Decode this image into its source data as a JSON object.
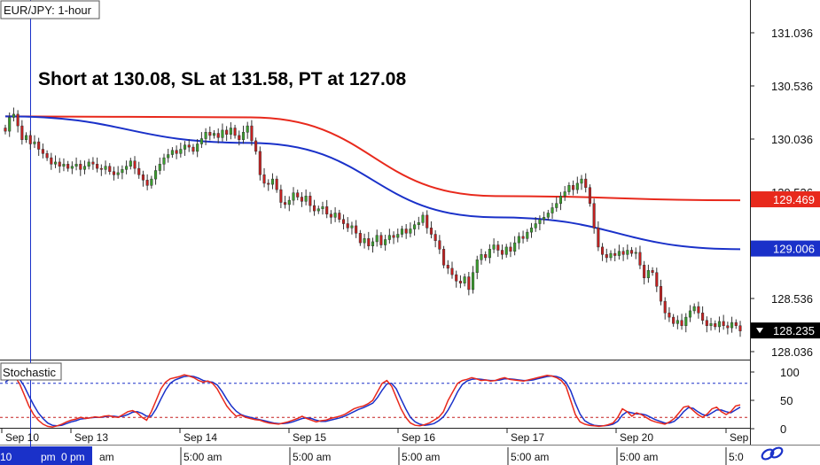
{
  "chart_data": [
    {
      "type": "candlestick",
      "title": "EUR/JPY: 1-hour",
      "annotation": "Short at 130.08, SL at 131.58, PT at 127.08",
      "y_ticks": [
        "131.036",
        "130.536",
        "130.036",
        "129.536",
        "128.536",
        "128.036"
      ],
      "ylim": [
        127.95,
        131.25
      ],
      "x_ticks_date": [
        "Sep 10",
        "Sep 13",
        "Sep 14",
        "Sep 15",
        "Sep 16",
        "Sep 17",
        "Sep 20",
        "Sep"
      ],
      "x_ticks_time": [
        "10",
        "pm",
        "0 pm",
        "am",
        "5:00 am",
        "5:00 am",
        "5:00 am",
        "5:00 am",
        "5:00 am",
        "5:0"
      ],
      "price_tags": [
        {
          "label": "129.469",
          "value": 129.469,
          "color": "#e8291c"
        },
        {
          "label": "129.006",
          "value": 129.006,
          "color": "#1a31c9"
        },
        {
          "label": "128.235",
          "value": 128.235,
          "color": "#000000"
        }
      ],
      "candle_colors": {
        "up": "#3aa02d",
        "down": "#c62020",
        "wick": "#333333"
      },
      "close": [
        130.11,
        130.24,
        130.27,
        130.16,
        130.03,
        130.07,
        129.99,
        130.01,
        129.94,
        129.9,
        129.86,
        129.8,
        129.82,
        129.78,
        129.8,
        129.76,
        129.78,
        129.8,
        129.75,
        129.78,
        129.82,
        129.8,
        129.76,
        129.75,
        129.78,
        129.73,
        129.7,
        129.72,
        129.75,
        129.78,
        129.83,
        129.76,
        129.7,
        129.65,
        129.6,
        129.66,
        129.74,
        129.8,
        129.86,
        129.89,
        129.93,
        129.9,
        129.94,
        129.98,
        129.96,
        129.92,
        129.99,
        130.04,
        130.1,
        130.07,
        130.09,
        130.05,
        130.12,
        130.08,
        130.14,
        130.07,
        130.03,
        130.1,
        130.16,
        130.02,
        129.92,
        129.7,
        129.62,
        129.61,
        129.66,
        129.56,
        129.44,
        129.42,
        129.46,
        129.53,
        129.49,
        129.45,
        129.5,
        129.41,
        129.36,
        129.38,
        129.4,
        129.33,
        129.3,
        129.34,
        129.28,
        129.24,
        129.2,
        129.22,
        129.15,
        129.06,
        129.1,
        129.03,
        129.07,
        129.13,
        129.04,
        129.09,
        129.13,
        129.11,
        129.14,
        129.19,
        129.15,
        129.19,
        129.23,
        129.25,
        129.32,
        129.2,
        129.14,
        129.08,
        129.0,
        128.85,
        128.82,
        128.76,
        128.7,
        128.68,
        128.74,
        128.62,
        128.78,
        128.9,
        128.95,
        128.92,
        129.0,
        129.04,
        128.99,
        128.95,
        129.02,
        128.98,
        129.06,
        129.12,
        129.1,
        129.16,
        129.2,
        129.24,
        129.28,
        129.3,
        129.34,
        129.39,
        129.43,
        129.5,
        129.54,
        129.6,
        129.56,
        129.62,
        129.66,
        129.58,
        129.43,
        129.2,
        129.02,
        128.95,
        128.92,
        128.96,
        128.94,
        128.98,
        128.95,
        128.99,
        128.96,
        128.97,
        128.85,
        128.73,
        128.8,
        128.78,
        128.65,
        128.51,
        128.4,
        128.36,
        128.3,
        128.33,
        128.28,
        128.36,
        128.42,
        128.46,
        128.4,
        128.33,
        128.28,
        128.3,
        128.27,
        128.32,
        128.28,
        128.26,
        128.31,
        128.28,
        128.23
      ],
      "ma_slow_red": [
        130.25,
        130.24,
        129.5,
        129.46
      ],
      "ma_fast_blue": [
        130.25,
        130.0,
        129.3,
        129.0
      ],
      "stochastic": {
        "label": "Stochastic",
        "y_ticks": [
          "100",
          "50",
          "0"
        ],
        "ylim": [
          0,
          100
        ],
        "levels": [
          80,
          20
        ],
        "k_color": "#e8291c",
        "d_color": "#1a31c9",
        "k": [
          90,
          95,
          92,
          80,
          60,
          40,
          25,
          15,
          8,
          4,
          3,
          5,
          8,
          12,
          15,
          17,
          20,
          18,
          19,
          21,
          20,
          22,
          23,
          21,
          20,
          25,
          30,
          32,
          28,
          20,
          15,
          30,
          50,
          70,
          82,
          88,
          90,
          92,
          95,
          93,
          90,
          85,
          82,
          84,
          80,
          70,
          55,
          40,
          30,
          22,
          24,
          20,
          18,
          16,
          15,
          12,
          10,
          9,
          8,
          10,
          12,
          15,
          18,
          22,
          18,
          15,
          12,
          14,
          15,
          18,
          20,
          22,
          25,
          30,
          35,
          38,
          40,
          44,
          50,
          65,
          80,
          85,
          75,
          55,
          35,
          20,
          10,
          6,
          5,
          7,
          10,
          15,
          20,
          30,
          50,
          65,
          80,
          85,
          87,
          90,
          88,
          85,
          86,
          84,
          85,
          88,
          90,
          87,
          86,
          85,
          84,
          86,
          88,
          90,
          92,
          94,
          93,
          90,
          85,
          75,
          50,
          25,
          12,
          8,
          6,
          5,
          4,
          5,
          7,
          10,
          20,
          35,
          30,
          22,
          28,
          25,
          20,
          15,
          12,
          10,
          8,
          12,
          18,
          28,
          38,
          40,
          32,
          25,
          20,
          26,
          35,
          38,
          30,
          25,
          30,
          40,
          42
        ],
        "d": [
          82,
          88,
          92,
          88,
          75,
          58,
          42,
          28,
          18,
          10,
          6,
          5,
          6,
          9,
          12,
          14,
          17,
          18,
          19,
          20,
          20,
          21,
          22,
          22,
          21,
          22,
          25,
          29,
          30,
          27,
          22,
          22,
          35,
          52,
          68,
          80,
          86,
          89,
          92,
          93,
          92,
          89,
          85,
          83,
          82,
          77,
          66,
          52,
          40,
          31,
          25,
          22,
          20,
          18,
          16,
          14,
          12,
          10,
          9,
          9,
          10,
          12,
          15,
          18,
          19,
          18,
          15,
          13,
          13,
          15,
          17,
          19,
          22,
          26,
          30,
          34,
          37,
          41,
          45,
          55,
          68,
          79,
          80,
          70,
          52,
          35,
          20,
          12,
          8,
          6,
          7,
          9,
          14,
          21,
          33,
          48,
          65,
          78,
          84,
          87,
          88,
          87,
          86,
          85,
          85,
          86,
          88,
          88,
          87,
          86,
          85,
          85,
          86,
          88,
          90,
          92,
          93,
          92,
          89,
          82,
          67,
          45,
          26,
          14,
          9,
          6,
          5,
          5,
          6,
          8,
          13,
          24,
          30,
          28,
          26,
          26,
          24,
          20,
          16,
          13,
          10,
          10,
          13,
          20,
          30,
          37,
          36,
          30,
          25,
          23,
          28,
          33,
          33,
          30,
          28,
          33,
          38
        ]
      }
    }
  ]
}
